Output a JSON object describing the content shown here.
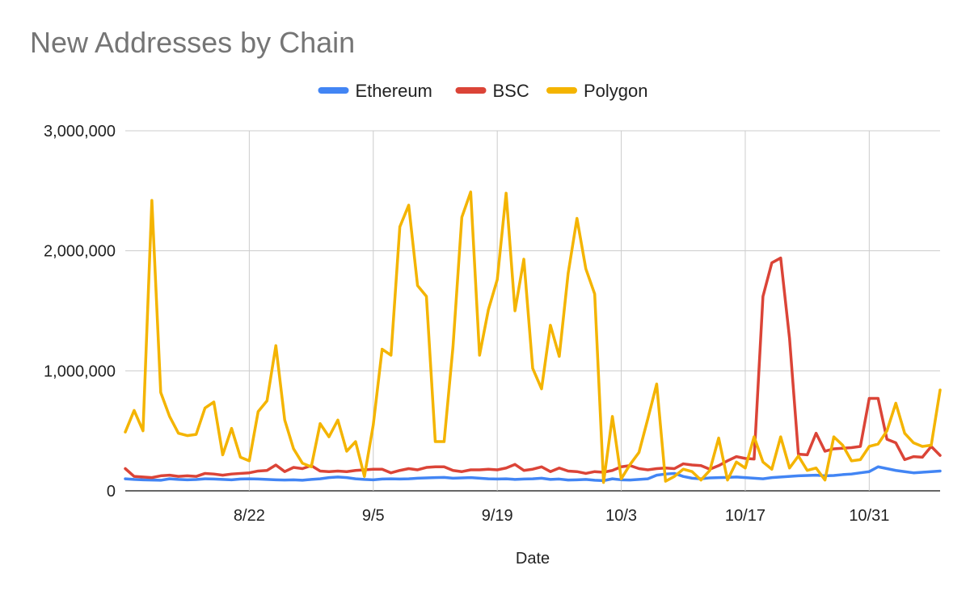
{
  "chart_data": {
    "type": "line",
    "title": "New Addresses by Chain",
    "xlabel": "Date",
    "ylabel": "",
    "ylim": [
      0,
      3000000
    ],
    "yticks": [
      0,
      1000000,
      2000000,
      3000000
    ],
    "ytick_labels": [
      "0",
      "1,000,000",
      "2,000,000",
      "3,000,000"
    ],
    "x_start": "8/8",
    "x_end": "11/7",
    "xtick_labels": [
      "8/22",
      "9/5",
      "9/19",
      "10/3",
      "10/17",
      "10/31"
    ],
    "x": [
      "8/8",
      "8/9",
      "8/10",
      "8/11",
      "8/12",
      "8/13",
      "8/14",
      "8/15",
      "8/16",
      "8/17",
      "8/18",
      "8/19",
      "8/20",
      "8/21",
      "8/22",
      "8/23",
      "8/24",
      "8/25",
      "8/26",
      "8/27",
      "8/28",
      "8/29",
      "8/30",
      "8/31",
      "9/1",
      "9/2",
      "9/3",
      "9/4",
      "9/5",
      "9/6",
      "9/7",
      "9/8",
      "9/9",
      "9/10",
      "9/11",
      "9/12",
      "9/13",
      "9/14",
      "9/15",
      "9/16",
      "9/17",
      "9/18",
      "9/19",
      "9/20",
      "9/21",
      "9/22",
      "9/23",
      "9/24",
      "9/25",
      "9/26",
      "9/27",
      "9/28",
      "9/29",
      "9/30",
      "10/1",
      "10/2",
      "10/3",
      "10/4",
      "10/5",
      "10/6",
      "10/7",
      "10/8",
      "10/9",
      "10/10",
      "10/11",
      "10/12",
      "10/13",
      "10/14",
      "10/15",
      "10/16",
      "10/17",
      "10/18",
      "10/19",
      "10/20",
      "10/21",
      "10/22",
      "10/23",
      "10/24",
      "10/25",
      "10/26",
      "10/27",
      "10/28",
      "10/29",
      "10/30",
      "10/31",
      "11/1",
      "11/2",
      "11/3",
      "11/4",
      "11/5",
      "11/6",
      "11/7",
      "11/8"
    ],
    "grid": true,
    "legend_position": "top",
    "series": [
      {
        "name": "Ethereum",
        "color": "#4285F4",
        "values": [
          100000,
          95000,
          92000,
          90000,
          88000,
          100000,
          95000,
          92000,
          94000,
          100000,
          98000,
          95000,
          92000,
          98000,
          100000,
          98000,
          95000,
          92000,
          90000,
          92000,
          88000,
          95000,
          100000,
          110000,
          115000,
          110000,
          100000,
          95000,
          92000,
          98000,
          100000,
          98000,
          100000,
          105000,
          108000,
          110000,
          112000,
          105000,
          108000,
          110000,
          105000,
          100000,
          98000,
          100000,
          95000,
          98000,
          100000,
          105000,
          95000,
          98000,
          90000,
          92000,
          95000,
          88000,
          85000,
          100000,
          92000,
          90000,
          95000,
          100000,
          130000,
          140000,
          145000,
          120000,
          105000,
          100000,
          108000,
          110000,
          112000,
          115000,
          110000,
          105000,
          100000,
          110000,
          115000,
          120000,
          125000,
          128000,
          130000,
          125000,
          128000,
          135000,
          140000,
          150000,
          160000,
          200000,
          185000,
          170000,
          160000,
          150000,
          155000,
          160000,
          165000
        ]
      },
      {
        "name": "BSC",
        "color": "#DB4437",
        "values": [
          185000,
          120000,
          115000,
          110000,
          125000,
          130000,
          120000,
          125000,
          120000,
          145000,
          140000,
          130000,
          140000,
          145000,
          150000,
          165000,
          170000,
          215000,
          160000,
          195000,
          185000,
          210000,
          165000,
          160000,
          165000,
          160000,
          170000,
          175000,
          180000,
          180000,
          150000,
          170000,
          185000,
          175000,
          195000,
          200000,
          200000,
          170000,
          160000,
          175000,
          175000,
          180000,
          175000,
          190000,
          220000,
          170000,
          180000,
          200000,
          160000,
          190000,
          165000,
          160000,
          145000,
          160000,
          155000,
          170000,
          200000,
          210000,
          185000,
          175000,
          185000,
          190000,
          185000,
          225000,
          215000,
          210000,
          180000,
          210000,
          250000,
          285000,
          270000,
          265000,
          1620000,
          1900000,
          1940000,
          1270000,
          305000,
          300000,
          480000,
          330000,
          350000,
          355000,
          360000,
          370000,
          770000,
          770000,
          430000,
          400000,
          260000,
          285000,
          280000,
          370000,
          295000
        ]
      },
      {
        "name": "Polygon",
        "color": "#F4B400",
        "values": [
          490000,
          670000,
          500000,
          2420000,
          820000,
          620000,
          480000,
          460000,
          470000,
          690000,
          740000,
          300000,
          520000,
          280000,
          250000,
          660000,
          750000,
          1210000,
          590000,
          350000,
          230000,
          200000,
          560000,
          450000,
          590000,
          330000,
          410000,
          120000,
          550000,
          1180000,
          1130000,
          2200000,
          2380000,
          1710000,
          1620000,
          410000,
          410000,
          1200000,
          2280000,
          2490000,
          1130000,
          1510000,
          1760000,
          2480000,
          1500000,
          1930000,
          1020000,
          850000,
          1380000,
          1120000,
          1810000,
          2270000,
          1850000,
          1640000,
          70000,
          620000,
          100000,
          220000,
          320000,
          600000,
          890000,
          80000,
          120000,
          180000,
          160000,
          90000,
          170000,
          440000,
          90000,
          240000,
          190000,
          450000,
          240000,
          180000,
          450000,
          190000,
          290000,
          170000,
          190000,
          90000,
          450000,
          380000,
          250000,
          260000,
          370000,
          390000,
          500000,
          730000,
          480000,
          400000,
          370000,
          380000,
          840000
        ]
      }
    ]
  }
}
